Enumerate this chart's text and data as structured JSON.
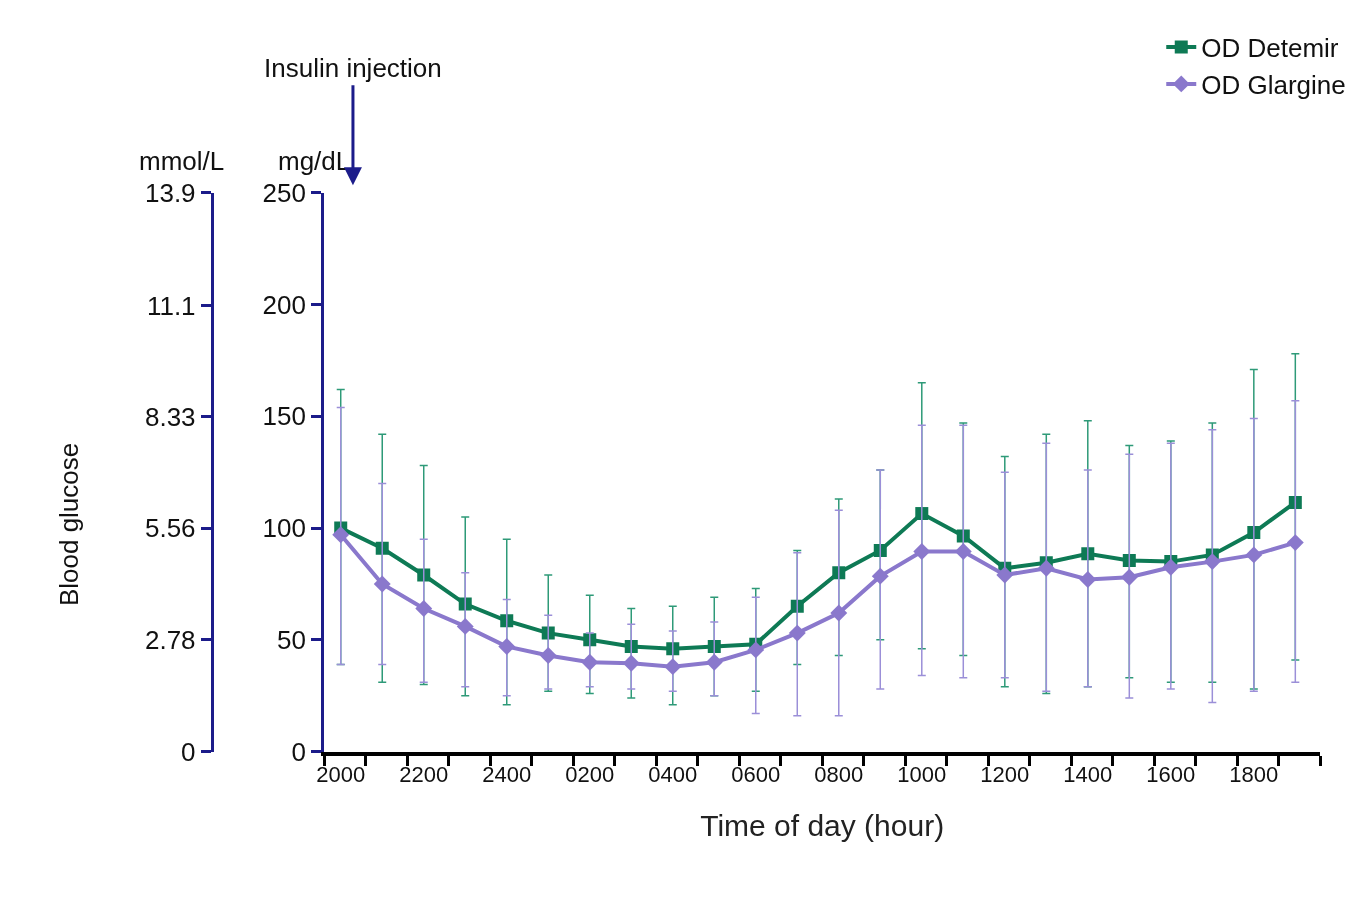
{
  "chart_data": {
    "type": "line",
    "xlabel": "Time of day (hour)",
    "ylabel": "mg/dL",
    "y2label": "mmol/L",
    "categories": [
      "2000",
      null,
      "2200",
      null,
      "2400",
      null,
      "0200",
      null,
      "0400",
      null,
      "0600",
      null,
      "0800",
      null,
      "1000",
      null,
      "1200",
      null,
      "1400",
      null,
      "1600",
      null,
      "1800",
      null
    ],
    "ylim": [
      0,
      250
    ],
    "yticks": [
      0,
      50,
      100,
      150,
      200,
      250
    ],
    "y2lim": [
      0,
      13.9
    ],
    "y2ticks": [
      0,
      2.78,
      5.56,
      8.33,
      11.1,
      13.9
    ],
    "annotations": [
      "Insulin injection",
      "Blood glucose"
    ],
    "legend": "top right",
    "line_style": "solid",
    "series": [
      {
        "name": "OD Detemir",
        "color": "#0e7a55",
        "marker": "square",
        "values": [
          100,
          91,
          79,
          66,
          58.5,
          53,
          50,
          47,
          46,
          47,
          48,
          65,
          80,
          90,
          106.5,
          96.5,
          82,
          84.5,
          88.5,
          85.5,
          85,
          88,
          98,
          111.5
        ],
        "errors": [
          [
            39,
            162
          ],
          [
            31,
            142
          ],
          [
            30,
            128
          ],
          [
            25,
            105
          ],
          [
            21,
            95
          ],
          [
            27,
            79
          ],
          [
            26,
            70
          ],
          [
            24,
            64
          ],
          [
            21,
            65
          ],
          [
            25,
            69
          ],
          [
            27,
            73
          ],
          [
            39,
            90
          ],
          [
            43,
            113
          ],
          [
            50,
            126
          ],
          [
            46,
            165
          ],
          [
            43,
            147
          ],
          [
            29,
            132
          ],
          [
            26,
            142
          ],
          [
            29,
            148
          ],
          [
            33,
            137
          ],
          [
            31,
            139
          ],
          [
            31,
            147
          ],
          [
            28,
            171
          ],
          [
            41,
            178
          ]
        ]
      },
      {
        "name": "OD Glargine",
        "color": "#8a78cc",
        "marker": "diamond",
        "values": [
          97,
          75,
          64,
          56,
          47,
          43,
          40,
          39.5,
          38,
          40,
          45.5,
          53,
          62,
          78.5,
          89.5,
          89.5,
          79,
          82,
          77,
          78,
          82.5,
          85,
          88,
          93.5
        ],
        "errors": [
          [
            39,
            154
          ],
          [
            39,
            120
          ],
          [
            31,
            95
          ],
          [
            29,
            80
          ],
          [
            25,
            68
          ],
          [
            28,
            61
          ],
          [
            29,
            53
          ],
          [
            28,
            57
          ],
          [
            27,
            54
          ],
          [
            25,
            58
          ],
          [
            17,
            69
          ],
          [
            16,
            89
          ],
          [
            16,
            108
          ],
          [
            28,
            126
          ],
          [
            34,
            146
          ],
          [
            33,
            146
          ],
          [
            33,
            125
          ],
          [
            27,
            138
          ],
          [
            29,
            126
          ],
          [
            24,
            133
          ],
          [
            28,
            138
          ],
          [
            22,
            144
          ],
          [
            27,
            149
          ],
          [
            31,
            157
          ]
        ]
      }
    ]
  }
}
